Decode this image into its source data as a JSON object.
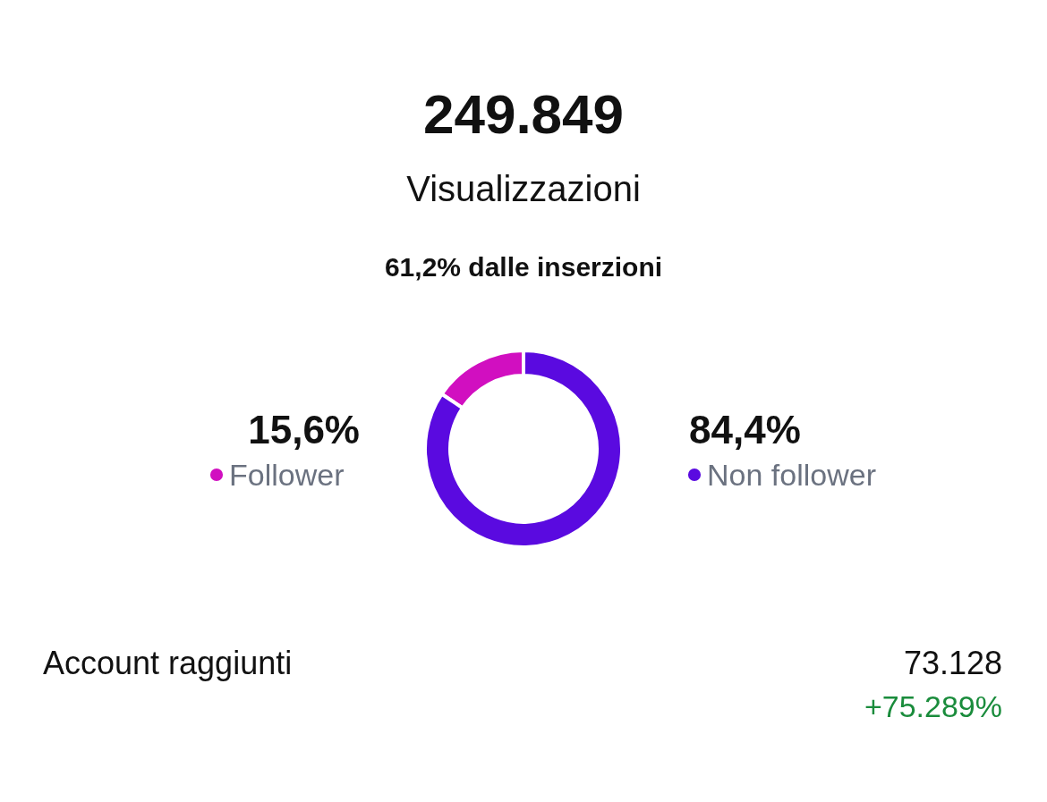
{
  "chart_data": {
    "type": "donut",
    "title": "249.849",
    "subtitle": "Visualizzazioni",
    "categories": [
      "Follower",
      "Non follower"
    ],
    "values": [
      15.6,
      84.4
    ],
    "colors": [
      "#d10fc0",
      "#5a0ae0"
    ],
    "legend": "bottom right",
    "value_labels": [
      "15,6%",
      "84,4%"
    ],
    "annotations": [
      "61,2% dalle inserzioni",
      "Account raggiunti",
      "73.128",
      "+75.289%"
    ]
  }
}
